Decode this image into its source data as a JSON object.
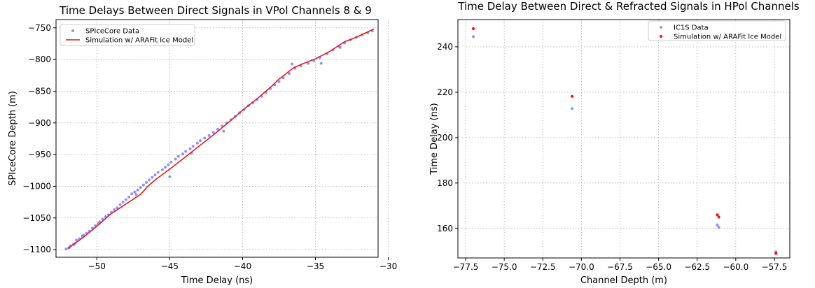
{
  "chart_data": [
    {
      "type": "scatter",
      "title": "Time Delays Between Direct Signals in VPol Channels 8 & 9",
      "xlabel": "Time Delay (ns)",
      "ylabel": "SPIceCore Depth (m)",
      "xlim": [
        -52.8,
        -30.7
      ],
      "ylim": [
        -1112,
        -737
      ],
      "xticks": [
        -50,
        -45,
        -40,
        -35,
        -30
      ],
      "yticks": [
        -750,
        -800,
        -850,
        -900,
        -950,
        -1000,
        -1050,
        -1100
      ],
      "grid": true,
      "legend_position": "upper-left",
      "series": [
        {
          "name": "SPIceCore Data",
          "kind": "scatter",
          "color": "#4a4aff",
          "points": [
            [
              -52.1,
              -1099
            ],
            [
              -51.9,
              -1097
            ],
            [
              -51.8,
              -1094
            ],
            [
              -51.6,
              -1092
            ],
            [
              -51.5,
              -1090
            ],
            [
              -51.4,
              -1085
            ],
            [
              -51.2,
              -1083
            ],
            [
              -51.0,
              -1079
            ],
            [
              -50.9,
              -1077
            ],
            [
              -50.7,
              -1074
            ],
            [
              -50.5,
              -1071
            ],
            [
              -50.3,
              -1066
            ],
            [
              -50.1,
              -1062
            ],
            [
              -49.9,
              -1059
            ],
            [
              -49.8,
              -1056
            ],
            [
              -49.6,
              -1052
            ],
            [
              -49.4,
              -1048
            ],
            [
              -49.2,
              -1045
            ],
            [
              -49.0,
              -1041
            ],
            [
              -48.8,
              -1037
            ],
            [
              -48.6,
              -1034
            ],
            [
              -48.4,
              -1029
            ],
            [
              -48.2,
              -1025
            ],
            [
              -48.0,
              -1021
            ],
            [
              -47.8,
              -1017
            ],
            [
              -47.6,
              -1012
            ],
            [
              -47.4,
              -1009
            ],
            [
              -47.2,
              -1006
            ],
            [
              -47.0,
              -1002
            ],
            [
              -46.8,
              -998
            ],
            [
              -46.6,
              -994
            ],
            [
              -46.4,
              -990
            ],
            [
              -46.2,
              -986
            ],
            [
              -46.0,
              -982
            ],
            [
              -45.8,
              -978
            ],
            [
              -45.5,
              -974
            ],
            [
              -45.3,
              -970
            ],
            [
              -45.1,
              -966
            ],
            [
              -44.9,
              -962
            ],
            [
              -44.6,
              -957
            ],
            [
              -44.4,
              -953
            ],
            [
              -44.1,
              -949
            ],
            [
              -43.9,
              -945
            ],
            [
              -43.6,
              -941
            ],
            [
              -43.4,
              -937
            ],
            [
              -43.1,
              -932
            ],
            [
              -42.9,
              -928
            ],
            [
              -42.6,
              -924
            ],
            [
              -42.3,
              -920
            ],
            [
              -42.0,
              -915
            ],
            [
              -41.7,
              -910
            ],
            [
              -41.4,
              -905
            ],
            [
              -41.1,
              -900
            ],
            [
              -40.8,
              -895
            ],
            [
              -40.5,
              -890
            ],
            [
              -40.2,
              -884
            ],
            [
              -39.9,
              -879
            ],
            [
              -39.6,
              -873
            ],
            [
              -39.3,
              -868
            ],
            [
              -39.0,
              -863
            ],
            [
              -38.7,
              -858
            ],
            [
              -38.4,
              -852
            ],
            [
              -38.1,
              -846
            ],
            [
              -37.8,
              -840
            ],
            [
              -37.5,
              -835
            ],
            [
              -37.2,
              -829
            ],
            [
              -36.8,
              -822
            ],
            [
              -36.4,
              -814
            ],
            [
              -36.0,
              -810
            ],
            [
              -35.5,
              -806
            ],
            [
              -35.1,
              -802
            ],
            [
              -34.7,
              -797
            ],
            [
              -34.2,
              -791
            ],
            [
              -33.8,
              -785
            ],
            [
              -33.4,
              -779
            ],
            [
              -33.0,
              -774
            ],
            [
              -32.6,
              -769
            ],
            [
              -32.2,
              -765
            ],
            [
              -31.8,
              -761
            ],
            [
              -31.4,
              -758
            ],
            [
              -31.1,
              -755
            ],
            [
              -45.0,
              -985
            ],
            [
              -43.5,
              -948
            ],
            [
              -41.3,
              -913
            ],
            [
              -36.6,
              -807
            ],
            [
              -34.6,
              -806
            ],
            [
              -33.3,
              -781
            ],
            [
              -47.3,
              -1013
            ]
          ]
        },
        {
          "name": "Simulation w/ ARAFit Ice Model",
          "kind": "line",
          "color": "#e41a1c",
          "x": [
            -52.0,
            -51.0,
            -50.0,
            -49.0,
            -48.0,
            -47.0,
            -46.5,
            -46.0,
            -45.0,
            -44.0,
            -43.0,
            -42.0,
            -41.0,
            -40.0,
            -39.0,
            -38.0,
            -37.5,
            -37.0,
            -36.5,
            -36.0,
            -35.0,
            -34.0,
            -33.0,
            -32.3,
            -31.0
          ],
          "y": [
            -1098,
            -1082,
            -1063,
            -1043,
            -1028,
            -1013,
            -1000,
            -990,
            -973,
            -955,
            -937,
            -919,
            -900,
            -880,
            -862,
            -842,
            -831,
            -822,
            -813,
            -808,
            -799,
            -787,
            -772,
            -766,
            -752
          ]
        }
      ]
    },
    {
      "type": "scatter",
      "title": "Time Delay Between Direct & Refracted Signals in HPol Channels",
      "xlabel": "Channel Depth (m)",
      "ylabel": "Time Delay (ns)",
      "xlim": [
        -78.0,
        -56.5
      ],
      "ylim": [
        147,
        252
      ],
      "xticks": [
        -77.5,
        -75.0,
        -72.5,
        -70.0,
        -67.5,
        -65.0,
        -62.5,
        -60.0,
        -57.5
      ],
      "yticks": [
        160,
        180,
        200,
        220,
        240
      ],
      "grid": true,
      "legend_position": "upper-right",
      "series": [
        {
          "name": "IC1S Data",
          "kind": "scatter",
          "color": "#4a4aff",
          "points": [
            [
              -77.0,
              244.5
            ],
            [
              -70.6,
              212.8
            ],
            [
              -61.2,
              161.5
            ],
            [
              -61.1,
              160.5
            ],
            [
              -57.4,
              149.7
            ]
          ]
        },
        {
          "name": "Simulation w/ ARAFit Ice Model",
          "kind": "scatter",
          "color": "#ff0000",
          "points": [
            [
              -77.0,
              248.0
            ],
            [
              -70.6,
              218.2
            ],
            [
              -61.2,
              166.0
            ],
            [
              -61.1,
              165.0
            ],
            [
              -57.4,
              149.0
            ]
          ]
        }
      ]
    }
  ]
}
